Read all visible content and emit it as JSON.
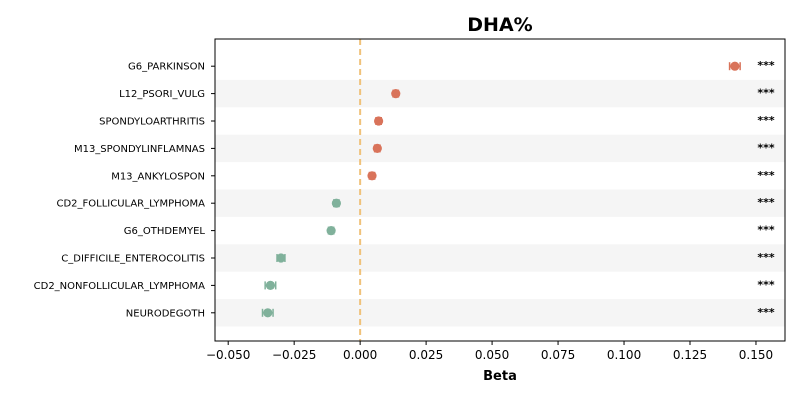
{
  "chart_data": {
    "type": "scatter",
    "title": "DHA%",
    "xlabel": "Beta",
    "ylabel": "",
    "xlim": [
      -0.055,
      0.161
    ],
    "xticks": [
      -0.05,
      -0.025,
      0.0,
      0.025,
      0.05,
      0.075,
      0.1,
      0.125,
      0.15
    ],
    "xtick_labels": [
      "−0.050",
      "−0.025",
      "0.000",
      "0.025",
      "0.050",
      "0.075",
      "0.100",
      "0.125",
      "0.150"
    ],
    "reference_line": {
      "x": 0,
      "style": "dashed",
      "color": "#f0c27a"
    },
    "grid": false,
    "legend": "none",
    "row_band_color": "#f5f5f5",
    "colors": {
      "positive": "#d9735a",
      "negative": "#80b19b"
    },
    "categories": [
      "G6_PARKINSON",
      "L12_PSORI_VULG",
      "SPONDYLOARTHRITIS",
      "M13_SPONDYLINFLAMNAS",
      "M13_ANKYLOSPON",
      "CD2_FOLLICULAR_LYMPHOMA",
      "G6_OTHDEMYEL",
      "C_DIFFICILE_ENTEROCOLITIS",
      "CD2_NONFOLLICULAR_LYMPHOMA",
      "NEURODEGOTH"
    ],
    "values": [
      0.142,
      0.0135,
      0.007,
      0.0065,
      0.0045,
      -0.009,
      -0.011,
      -0.03,
      -0.034,
      -0.035
    ],
    "errors": [
      0.002,
      0.001,
      0.001,
      0.001,
      0.001,
      0.001,
      0.001,
      0.0015,
      0.002,
      0.002
    ],
    "significance": [
      "***",
      "***",
      "***",
      "***",
      "***",
      "***",
      "***",
      "***",
      "***",
      "***"
    ]
  }
}
